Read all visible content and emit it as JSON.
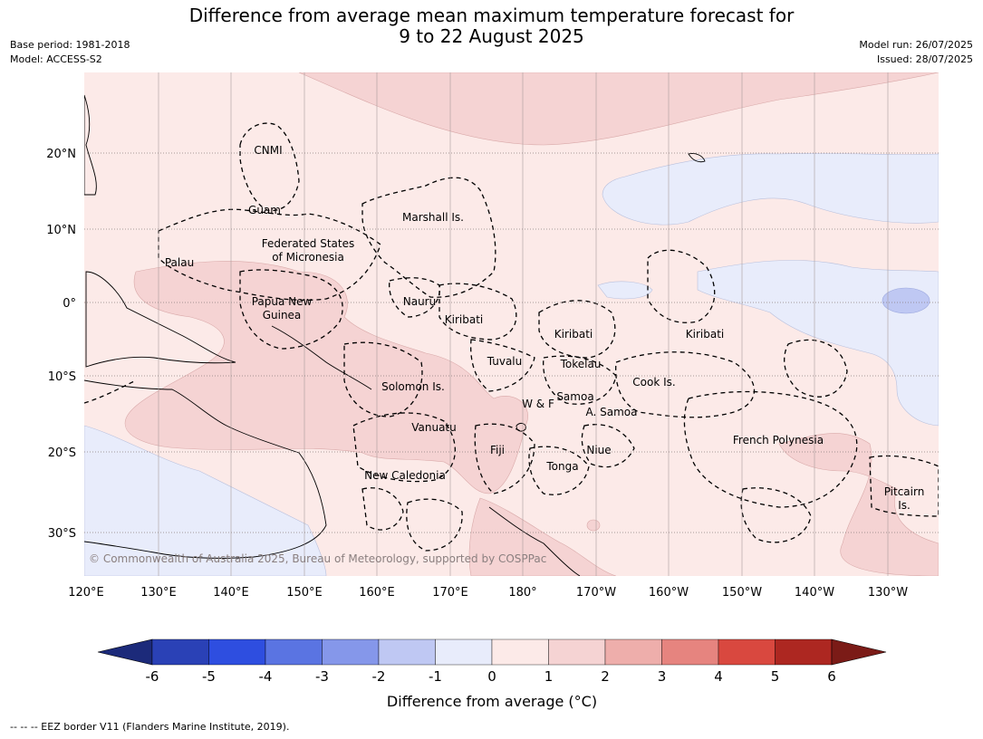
{
  "header": {
    "title_line1": "Difference from average mean maximum temperature forecast for",
    "title_line2": "9 to 22 August 2025",
    "base_period": "Base period: 1981-2018",
    "model": "Model: ACCESS-S2",
    "model_run": "Model run: 26/07/2025",
    "issued": "Issued: 28/07/2025"
  },
  "map": {
    "lon_labels": [
      "120°E",
      "130°E",
      "140°E",
      "150°E",
      "160°E",
      "170°E",
      "180°",
      "170°W",
      "160°W",
      "150°W",
      "140°W",
      "130°W"
    ],
    "lat_labels": [
      "20°N",
      "10°N",
      "0°",
      "10°S",
      "20°S",
      "30°S"
    ],
    "copyright": "© Commonwealth of Australia 2025, Bureau of Meteorology, supported by COSPPac",
    "places": {
      "cnmi": "CNMI",
      "guam": "Guam",
      "marshall": "Marshall Is.",
      "fsm_1": "Federated States",
      "fsm_2": "of Micronesia",
      "palau": "Palau",
      "png_1": "Papua New",
      "png_2": "Guinea",
      "nauru": "Nauru",
      "kiribati_w": "Kiribati",
      "kiribati_c": "Kiribati",
      "kiribati_e": "Kiribati",
      "tuvalu": "Tuvalu",
      "tokelau": "Tokelau",
      "cook": "Cook Is.",
      "solomon": "Solomon Is.",
      "samoa": "Samoa",
      "wf": "W & F",
      "asamoa": "A. Samoa",
      "vanuatu": "Vanuatu",
      "fiji": "Fiji",
      "niue": "Niue",
      "tonga": "Tonga",
      "frpoly": "French Polynesia",
      "newcal": "New Caledonia",
      "pitcairn_1": "Pitcairn",
      "pitcairn_2": "Is."
    }
  },
  "colorbar": {
    "ticks": [
      "-6",
      "-5",
      "-4",
      "-3",
      "-2",
      "-1",
      "0",
      "1",
      "2",
      "3",
      "4",
      "5",
      "6"
    ],
    "colors": [
      "#1c2a7a",
      "#2a41b6",
      "#2e4ee0",
      "#5a74e2",
      "#8597ea",
      "#bfc8f3",
      "#e8ecfb",
      "#fceae8",
      "#f5d3d3",
      "#eeaeab",
      "#e6847f",
      "#d9483f",
      "#ad2721",
      "#7b1b17"
    ],
    "label": "Difference from average (°C)"
  },
  "footer": "--  --  -- EEZ border V11 (Flanders Marine Institute, 2019)."
}
